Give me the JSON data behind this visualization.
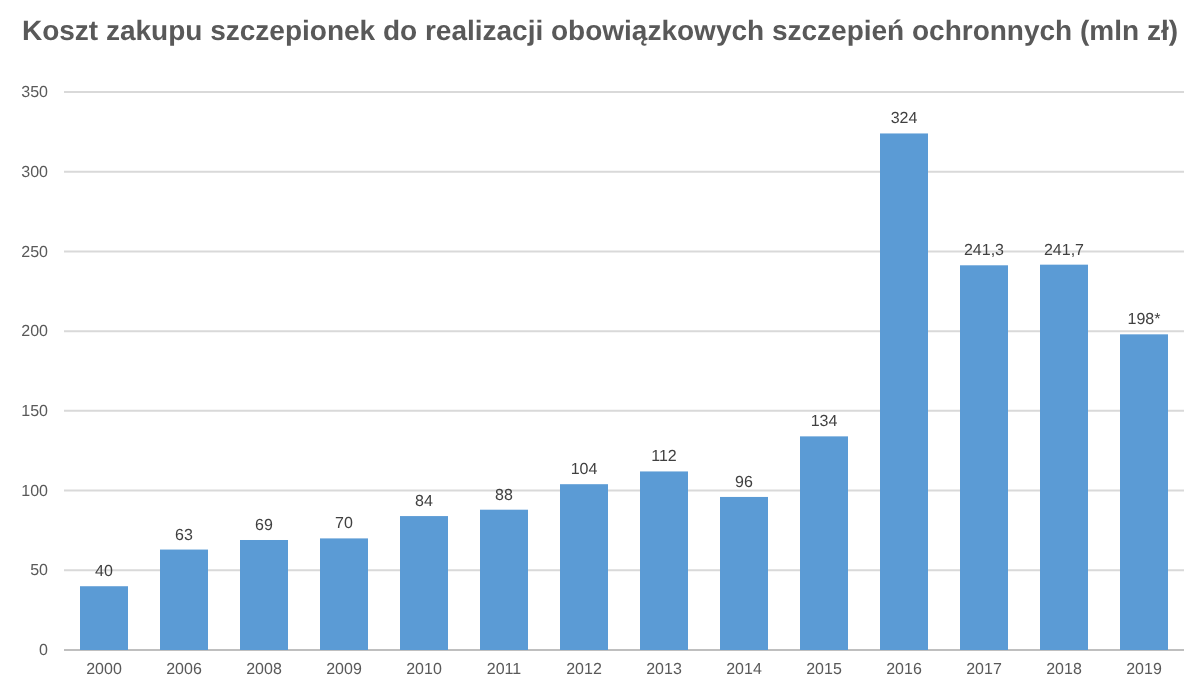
{
  "chart_data": {
    "type": "bar",
    "title": "Koszt zakupu szczepionek do realizacji obowiązkowych szczepień ochronnych (mln zł)",
    "categories": [
      "2000",
      "2006",
      "2008",
      "2009",
      "2010",
      "2011",
      "2012",
      "2013",
      "2014",
      "2015",
      "2016",
      "2017",
      "2018",
      "2019"
    ],
    "values": [
      40,
      63,
      69,
      70,
      84,
      88,
      104,
      112,
      96,
      134,
      324,
      241.3,
      241.7,
      198
    ],
    "value_labels": [
      "40",
      "63",
      "69",
      "70",
      "84",
      "88",
      "104",
      "112",
      "96",
      "134",
      "324",
      "241,3",
      "241,7",
      "198*"
    ],
    "color": "#5b9bd5",
    "ylim": [
      0,
      350
    ],
    "yticks": [
      0,
      50,
      100,
      150,
      200,
      250,
      300,
      350
    ],
    "grid": "y"
  }
}
